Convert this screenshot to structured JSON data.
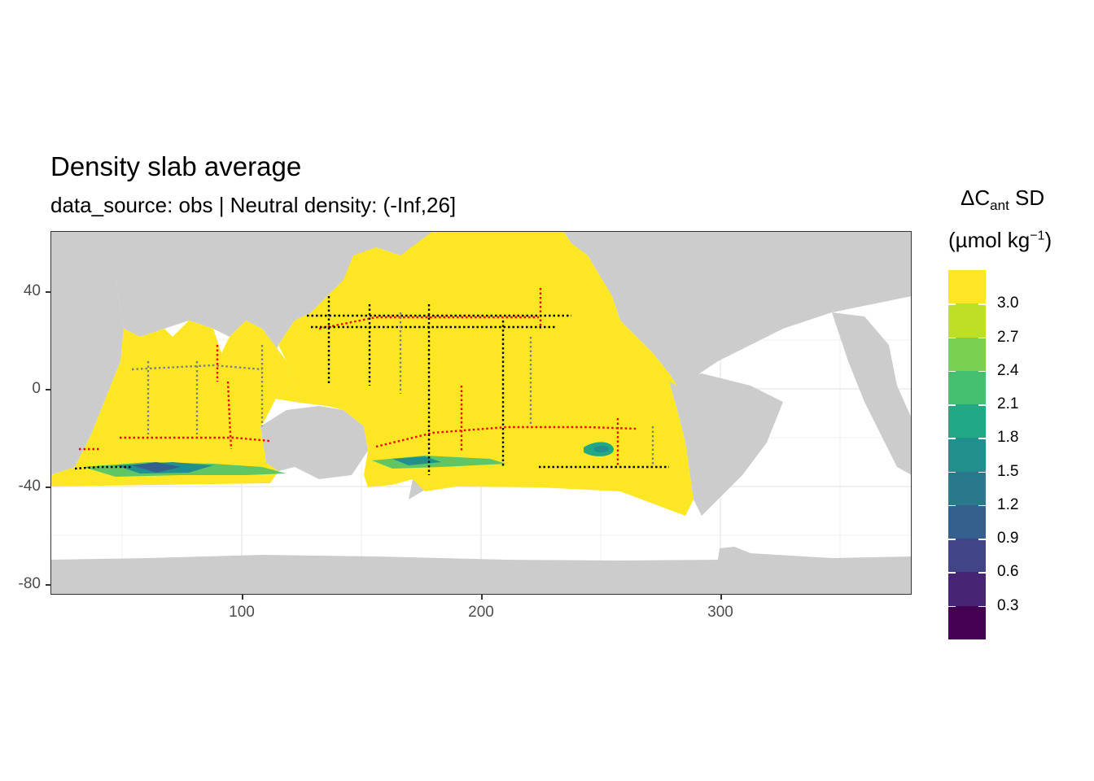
{
  "plot": {
    "title": "Density slab average",
    "subtitle": "data_source: obs | Neutral density: (-Inf,26]",
    "x_ticks": [
      "100",
      "200",
      "300"
    ],
    "y_ticks": [
      "40",
      "0",
      "-40",
      "-80"
    ]
  },
  "legend": {
    "title_line1_prefix": "ΔC",
    "title_line1_sub": "ant",
    "title_line1_suffix": " SD",
    "title_line2_prefix": "(µmol kg",
    "title_line2_sup": "−1",
    "title_line2_suffix": ")",
    "labels": [
      "3.0",
      "2.7",
      "2.4",
      "2.1",
      "1.8",
      "1.5",
      "1.2",
      "0.9",
      "0.6",
      "0.3"
    ],
    "colors": [
      "#440154",
      "#482475",
      "#414487",
      "#355f8d",
      "#2a788e",
      "#21908d",
      "#22a884",
      "#44bf70",
      "#7ad151",
      "#bddf26",
      "#fde725"
    ]
  },
  "colors": {
    "land": "#cccccc",
    "ocean_high": "#fde725",
    "no_data": "#ffffff",
    "grid": "#ebebeb",
    "obs_black": "#000000",
    "obs_red": "#ff0000",
    "obs_grey": "#808080"
  }
}
